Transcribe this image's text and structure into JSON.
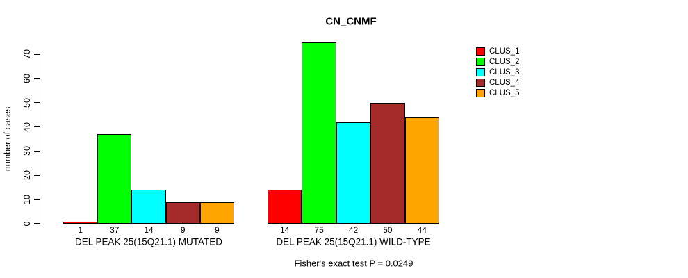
{
  "chart_data": {
    "type": "bar",
    "title": "CN_CNMF",
    "ylabel": "number of cases",
    "xlabel": "",
    "ylim": [
      0,
      70
    ],
    "yticks": [
      0,
      10,
      20,
      30,
      40,
      50,
      60,
      70
    ],
    "grid": false,
    "legend_position": "right-outside",
    "bar_value_labels_shown": true,
    "categories": [
      "DEL PEAK 25(15Q21.1) MUTATED",
      "DEL PEAK 25(15Q21.1) WILD-TYPE"
    ],
    "series": [
      {
        "name": "CLUS_1",
        "color": "#FF0000",
        "values": [
          1,
          14
        ]
      },
      {
        "name": "CLUS_2",
        "color": "#00FF00",
        "values": [
          37,
          75
        ]
      },
      {
        "name": "CLUS_3",
        "color": "#00FFFF",
        "values": [
          14,
          42
        ]
      },
      {
        "name": "CLUS_4",
        "color": "#A52A2A",
        "values": [
          9,
          50
        ]
      },
      {
        "name": "CLUS_5",
        "color": "#FFA500",
        "values": [
          9,
          44
        ]
      }
    ],
    "annotation": "Fisher's exact test P = 0.0249",
    "bar_border_color": "#000000",
    "axis_color": "#000000"
  }
}
